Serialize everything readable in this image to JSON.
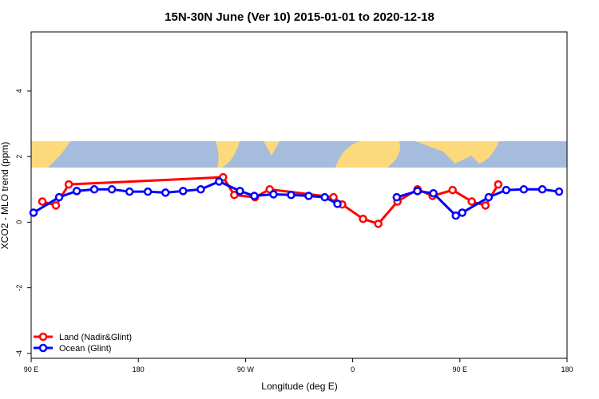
{
  "chart_data": {
    "type": "line",
    "title": "15N-30N June (Ver 10)   2015-01-01 to 2020-12-18",
    "x_label": "Longitude (deg E)",
    "y_label": "XCO2 - MLO trend (ppm)",
    "xlim": [
      90,
      540
    ],
    "ylim": [
      -4.15,
      5.8
    ],
    "xticks": [
      {
        "value": 90,
        "label": "90 E"
      },
      {
        "value": 180,
        "label": "180"
      },
      {
        "value": 270,
        "label": "90 W"
      },
      {
        "value": 360,
        "label": "0"
      },
      {
        "value": 450,
        "label": "90 E"
      },
      {
        "value": 540,
        "label": "180"
      }
    ],
    "yticks": [
      -4,
      -2,
      0,
      2,
      4
    ],
    "legend": "bottom-left",
    "series": [
      {
        "name": "Land (Nadir&Glint)",
        "color": "#ff0000",
        "x": [
          99.4,
          110.8,
          121.6,
          251.2,
          260.6,
          278,
          290.3,
          343.9,
          351.2,
          368.7,
          381.5,
          397.6,
          414.4,
          427.1,
          443.9,
          460,
          471.5,
          482.2
        ],
        "values": [
          0.63,
          0.51,
          1.15,
          1.37,
          0.83,
          0.76,
          1.0,
          0.76,
          0.54,
          0.1,
          -0.05,
          0.63,
          1.0,
          0.8,
          0.98,
          0.63,
          0.51,
          1.15
        ]
      },
      {
        "name": "Ocean (Glint)",
        "color": "#0000ff",
        "x": [
          92,
          113.5,
          128.3,
          143,
          157.8,
          172.6,
          188,
          202.8,
          217.6,
          232.4,
          247.8,
          265.3,
          277.4,
          293.5,
          308.3,
          323,
          336.5,
          347.2,
          null,
          397,
          414.4,
          427.8,
          446.6,
          452,
          474.2,
          488.9,
          503.7,
          519.2,
          533.3
        ],
        "values": [
          0.29,
          0.76,
          0.95,
          1.0,
          1.0,
          0.93,
          0.93,
          0.9,
          0.95,
          1.0,
          1.24,
          0.95,
          0.8,
          0.85,
          0.83,
          0.8,
          0.76,
          0.56,
          null,
          0.76,
          0.95,
          0.88,
          0.2,
          0.29,
          0.76,
          0.98,
          1.0,
          1.0,
          0.93
        ]
      }
    ]
  }
}
